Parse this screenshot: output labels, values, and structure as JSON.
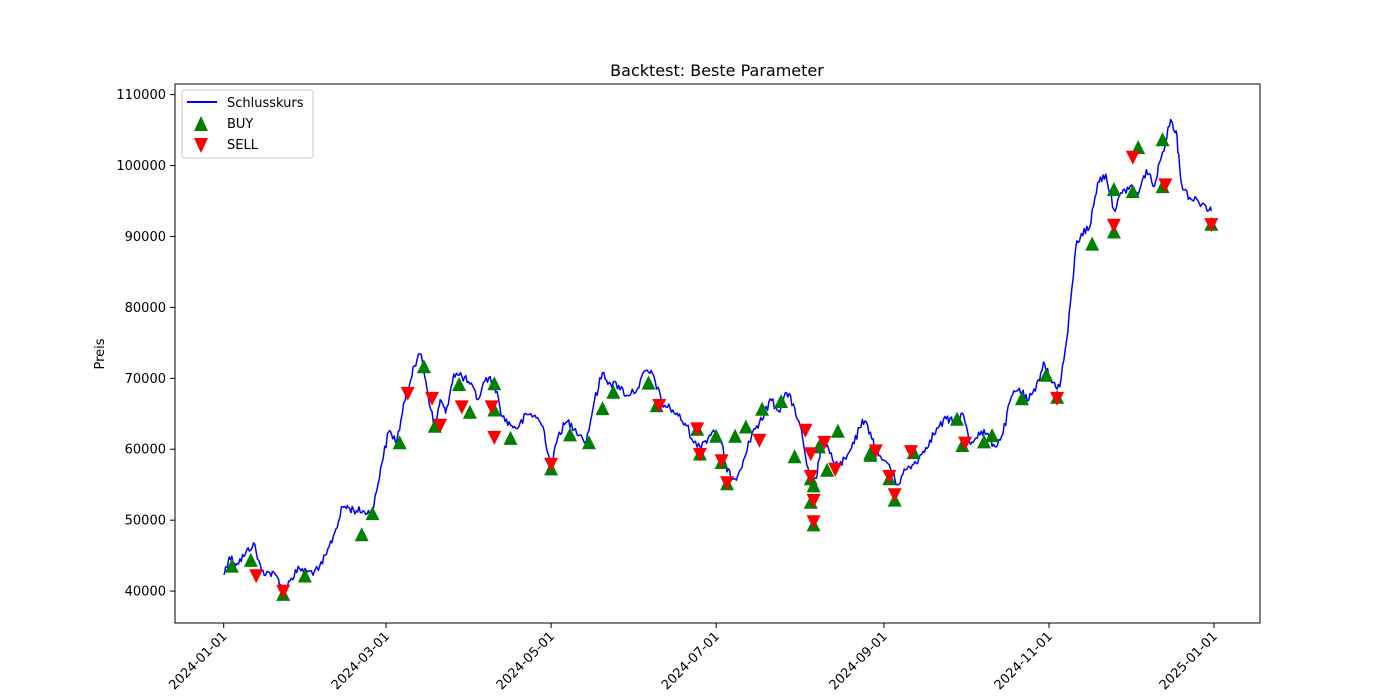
{
  "chart_data": {
    "type": "line",
    "title": "Backtest: Beste Parameter",
    "xlabel": "",
    "ylabel": "Preis",
    "x_type": "date",
    "xlim": [
      "2023-12-14",
      "2025-01-18"
    ],
    "ylim": [
      35500,
      111500
    ],
    "x_ticks": [
      "2024-01-01",
      "2024-03-01",
      "2024-05-01",
      "2024-07-01",
      "2024-09-01",
      "2024-11-01",
      "2025-01-01"
    ],
    "y_ticks": [
      40000,
      50000,
      60000,
      70000,
      80000,
      90000,
      100000,
      110000
    ],
    "grid": false,
    "legend_position": "top-left",
    "series": [
      {
        "name": "Schlusskurs",
        "color": "#0000ff",
        "x": [
          "2024-01-01",
          "2024-01-03",
          "2024-01-06",
          "2024-01-09",
          "2024-01-12",
          "2024-01-15",
          "2024-01-18",
          "2024-01-21",
          "2024-01-23",
          "2024-01-26",
          "2024-01-29",
          "2024-02-01",
          "2024-02-05",
          "2024-02-08",
          "2024-02-11",
          "2024-02-14",
          "2024-02-16",
          "2024-02-19",
          "2024-02-22",
          "2024-02-25",
          "2024-02-28",
          "2024-03-02",
          "2024-03-05",
          "2024-03-08",
          "2024-03-11",
          "2024-03-14",
          "2024-03-16",
          "2024-03-19",
          "2024-03-21",
          "2024-03-23",
          "2024-03-26",
          "2024-03-29",
          "2024-04-01",
          "2024-04-04",
          "2024-04-07",
          "2024-04-10",
          "2024-04-13",
          "2024-04-16",
          "2024-04-19",
          "2024-04-22",
          "2024-04-25",
          "2024-04-28",
          "2024-05-01",
          "2024-05-04",
          "2024-05-07",
          "2024-05-10",
          "2024-05-14",
          "2024-05-17",
          "2024-05-20",
          "2024-05-23",
          "2024-05-26",
          "2024-05-29",
          "2024-06-02",
          "2024-06-05",
          "2024-06-08",
          "2024-06-11",
          "2024-06-14",
          "2024-06-17",
          "2024-06-20",
          "2024-06-24",
          "2024-06-27",
          "2024-06-30",
          "2024-07-03",
          "2024-07-05",
          "2024-07-08",
          "2024-07-11",
          "2024-07-15",
          "2024-07-18",
          "2024-07-21",
          "2024-07-24",
          "2024-07-27",
          "2024-07-30",
          "2024-08-02",
          "2024-08-05",
          "2024-08-07",
          "2024-08-09",
          "2024-08-12",
          "2024-08-15",
          "2024-08-18",
          "2024-08-21",
          "2024-08-24",
          "2024-08-27",
          "2024-08-30",
          "2024-09-03",
          "2024-09-06",
          "2024-09-09",
          "2024-09-12",
          "2024-09-15",
          "2024-09-18",
          "2024-09-21",
          "2024-09-24",
          "2024-09-27",
          "2024-09-30",
          "2024-10-03",
          "2024-10-06",
          "2024-10-09",
          "2024-10-12",
          "2024-10-15",
          "2024-10-18",
          "2024-10-21",
          "2024-10-24",
          "2024-10-27",
          "2024-10-30",
          "2024-11-02",
          "2024-11-05",
          "2024-11-08",
          "2024-11-11",
          "2024-11-13",
          "2024-11-16",
          "2024-11-19",
          "2024-11-22",
          "2024-11-25",
          "2024-11-28",
          "2024-12-01",
          "2024-12-04",
          "2024-12-07",
          "2024-12-10",
          "2024-12-13",
          "2024-12-16",
          "2024-12-18",
          "2024-12-20",
          "2024-12-23",
          "2024-12-26",
          "2024-12-29",
          "2024-12-31"
        ],
        "values": [
          42300,
          44800,
          43900,
          45200,
          46800,
          42800,
          42600,
          41900,
          39900,
          41800,
          43200,
          42700,
          42900,
          45200,
          48200,
          51900,
          51800,
          51300,
          51200,
          51000,
          57300,
          62500,
          61200,
          66800,
          71600,
          73400,
          68900,
          62800,
          67000,
          65100,
          70600,
          70300,
          69200,
          67000,
          70100,
          69400,
          64600,
          63400,
          63100,
          64900,
          64800,
          63200,
          57500,
          62400,
          63900,
          62900,
          61100,
          66800,
          70800,
          69200,
          69000,
          67600,
          68600,
          71100,
          70300,
          66400,
          65800,
          64700,
          63300,
          60300,
          61200,
          62700,
          60800,
          56800,
          55800,
          58400,
          62900,
          64100,
          67100,
          65400,
          68000,
          65900,
          61500,
          54500,
          55900,
          61100,
          59400,
          57600,
          58600,
          60800,
          64200,
          62400,
          59100,
          57800,
          55000,
          57100,
          57900,
          59300,
          61300,
          63000,
          64300,
          63700,
          65100,
          60700,
          62400,
          62200,
          60400,
          62200,
          67300,
          68600,
          66800,
          68200,
          72300,
          69400,
          68800,
          76600,
          88700,
          90400,
          91200,
          97600,
          98800,
          93800,
          96100,
          97100,
          95900,
          99400,
          97100,
          101900,
          106500,
          104900,
          97400,
          95500,
          95100,
          94300,
          93600
        ]
      }
    ],
    "markers": [
      {
        "name": "BUY",
        "color": "#008000",
        "shape": "triangle-up",
        "x": [
          "2024-01-04",
          "2024-01-11",
          "2024-01-23",
          "2024-01-31",
          "2024-02-21",
          "2024-02-25",
          "2024-03-06",
          "2024-03-15",
          "2024-03-19",
          "2024-03-28",
          "2024-04-01",
          "2024-04-10",
          "2024-04-10",
          "2024-04-16",
          "2024-05-01",
          "2024-05-08",
          "2024-05-15",
          "2024-05-20",
          "2024-05-24",
          "2024-06-06",
          "2024-06-09",
          "2024-06-24",
          "2024-06-25",
          "2024-07-01",
          "2024-07-03",
          "2024-07-05",
          "2024-07-08",
          "2024-07-12",
          "2024-07-18",
          "2024-07-25",
          "2024-07-30",
          "2024-08-05",
          "2024-08-05",
          "2024-08-06",
          "2024-08-06",
          "2024-08-08",
          "2024-08-11",
          "2024-08-15",
          "2024-08-27",
          "2024-08-27",
          "2024-09-03",
          "2024-09-05",
          "2024-09-12",
          "2024-09-28",
          "2024-09-30",
          "2024-10-08",
          "2024-10-11",
          "2024-10-22",
          "2024-10-31",
          "2024-11-04",
          "2024-11-17",
          "2024-11-25",
          "2024-11-25",
          "2024-12-02",
          "2024-12-04",
          "2024-12-13",
          "2024-12-13",
          "2024-12-31"
        ],
        "values": [
          43600,
          44400,
          39600,
          42200,
          48000,
          51000,
          61000,
          71700,
          63300,
          69200,
          65300,
          69300,
          65600,
          61600,
          57300,
          62100,
          61000,
          65800,
          68100,
          69400,
          66200,
          62900,
          59400,
          61900,
          58200,
          55200,
          61900,
          63200,
          65700,
          66800,
          59000,
          52600,
          55900,
          54900,
          49400,
          60400,
          57100,
          62600,
          59500,
          59200,
          55900,
          52900,
          59600,
          64300,
          60600,
          61100,
          62000,
          67200,
          70500,
          67400,
          89000,
          96700,
          90700,
          96400,
          102600,
          103700,
          97100,
          91800
        ]
      },
      {
        "name": "SELL",
        "color": "#ff0000",
        "shape": "triangle-down",
        "x": [
          "2024-01-13",
          "2024-01-23",
          "2024-03-09",
          "2024-03-18",
          "2024-03-21",
          "2024-03-29",
          "2024-04-09",
          "2024-04-10",
          "2024-05-01",
          "2024-06-10",
          "2024-06-24",
          "2024-06-25",
          "2024-07-03",
          "2024-07-05",
          "2024-07-17",
          "2024-08-03",
          "2024-08-05",
          "2024-08-05",
          "2024-08-06",
          "2024-08-06",
          "2024-08-10",
          "2024-08-14",
          "2024-08-29",
          "2024-09-03",
          "2024-09-05",
          "2024-09-11",
          "2024-10-01",
          "2024-11-04",
          "2024-11-25",
          "2024-12-02",
          "2024-12-14",
          "2024-12-31"
        ],
        "values": [
          42100,
          39900,
          67800,
          67100,
          63300,
          65900,
          65900,
          61600,
          57800,
          66100,
          62800,
          59200,
          58300,
          55200,
          61200,
          62600,
          59300,
          56100,
          52700,
          49700,
          60900,
          57100,
          59700,
          56100,
          53500,
          59600,
          60800,
          67100,
          91500,
          101100,
          97200,
          91600
        ]
      }
    ]
  }
}
